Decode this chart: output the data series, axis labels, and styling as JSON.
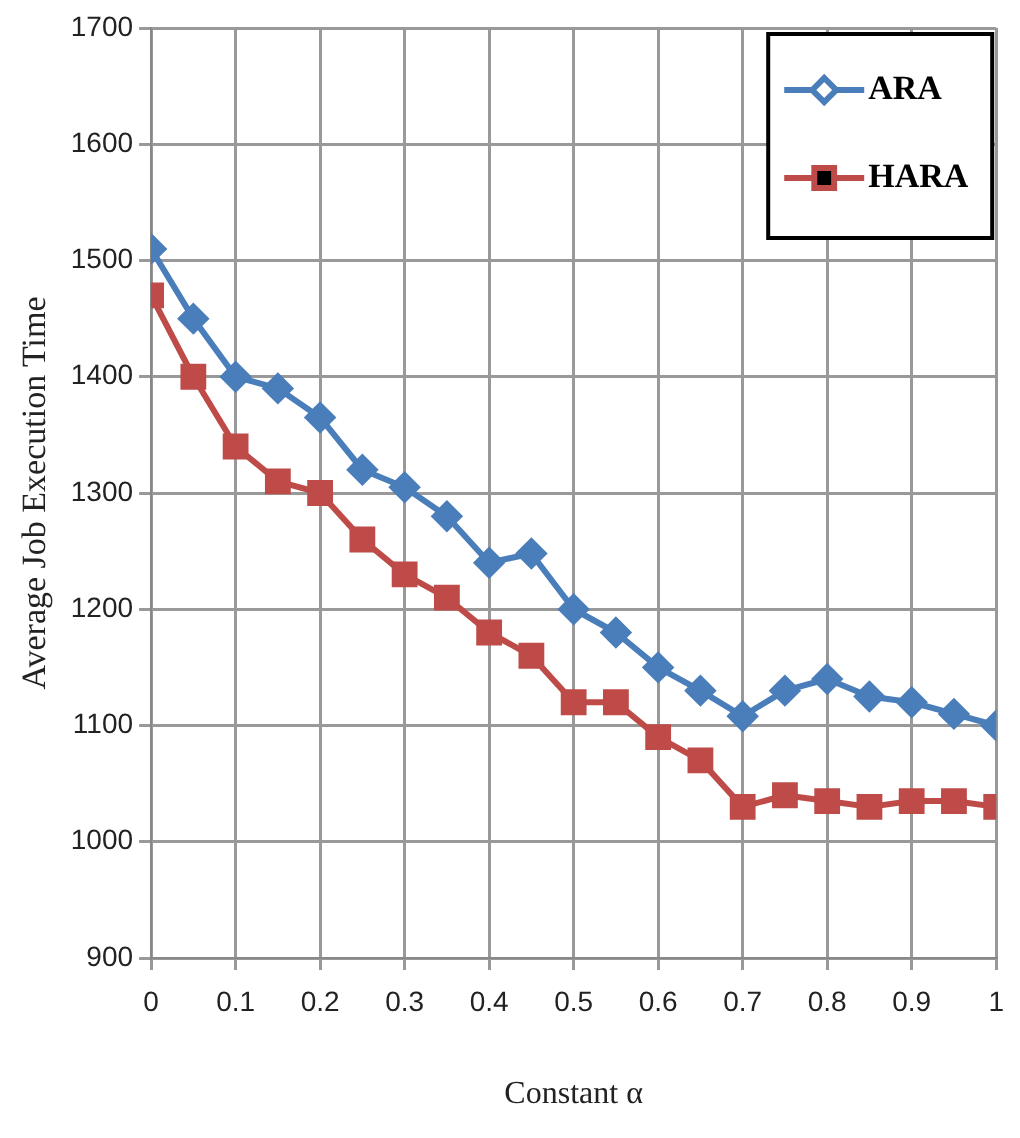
{
  "chart_data": {
    "type": "line",
    "xlabel": "Constant α",
    "ylabel": "Average Job Execution Time",
    "x": [
      0,
      0.05,
      0.1,
      0.15,
      0.2,
      0.25,
      0.3,
      0.35,
      0.4,
      0.45,
      0.5,
      0.55,
      0.6,
      0.65,
      0.7,
      0.75,
      0.8,
      0.85,
      0.9,
      0.95,
      1
    ],
    "series": [
      {
        "name": "ARA",
        "color": "#4a7ebb",
        "marker": "diamond",
        "values": [
          1510,
          1450,
          1400,
          1390,
          1365,
          1320,
          1305,
          1280,
          1240,
          1248,
          1200,
          1180,
          1150,
          1130,
          1108,
          1130,
          1140,
          1125,
          1120,
          1110,
          1100
        ]
      },
      {
        "name": "HARA",
        "color": "#be4b48",
        "marker": "square",
        "values": [
          1470,
          1400,
          1340,
          1310,
          1300,
          1260,
          1230,
          1210,
          1180,
          1160,
          1120,
          1120,
          1090,
          1070,
          1030,
          1040,
          1035,
          1030,
          1035,
          1035,
          1030
        ]
      }
    ],
    "xlim": [
      0,
      1
    ],
    "xticks": [
      0,
      0.1,
      0.2,
      0.3,
      0.4,
      0.5,
      0.6,
      0.7,
      0.8,
      0.9,
      1
    ],
    "ylim": [
      900,
      1700
    ],
    "yticks": [
      900,
      1000,
      1100,
      1200,
      1300,
      1400,
      1500,
      1600,
      1700
    ],
    "grid": true,
    "legend": "top right",
    "line_style": "solid"
  }
}
